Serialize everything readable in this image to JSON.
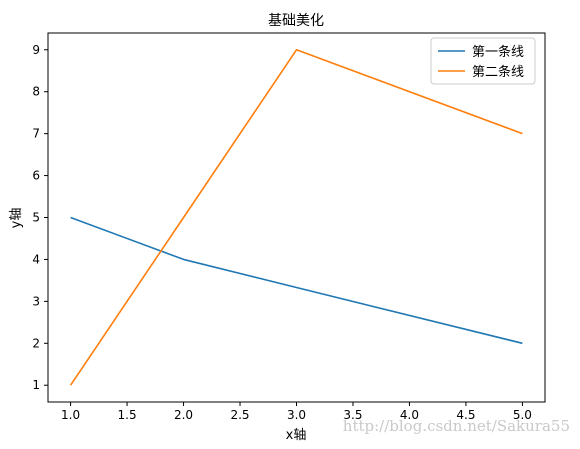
{
  "chart_data": {
    "type": "line",
    "title": "基础美化",
    "xlabel": "x轴",
    "ylabel": "y轴",
    "x": [
      1,
      2,
      3,
      5
    ],
    "xlim": [
      0.8,
      5.2
    ],
    "ylim": [
      0.6,
      9.4
    ],
    "xticks": [
      1.0,
      1.5,
      2.0,
      2.5,
      3.0,
      3.5,
      4.0,
      4.5,
      5.0
    ],
    "xtick_labels": [
      "1.0",
      "1.5",
      "2.0",
      "2.5",
      "3.0",
      "3.5",
      "4.0",
      "4.5",
      "5.0"
    ],
    "yticks": [
      1,
      2,
      3,
      4,
      5,
      6,
      7,
      8,
      9
    ],
    "ytick_labels": [
      "1",
      "2",
      "3",
      "4",
      "5",
      "6",
      "7",
      "8",
      "9"
    ],
    "grid": false,
    "legend_position": "top-right",
    "series": [
      {
        "name": "第一条线",
        "values": [
          5,
          4,
          3.33,
          2
        ],
        "color": "#1f77b4"
      },
      {
        "name": "第二条线",
        "values": [
          1,
          5,
          9,
          7
        ],
        "color": "#ff7f0e"
      }
    ]
  },
  "watermark": "http://blog.csdn.net/Sakura55"
}
